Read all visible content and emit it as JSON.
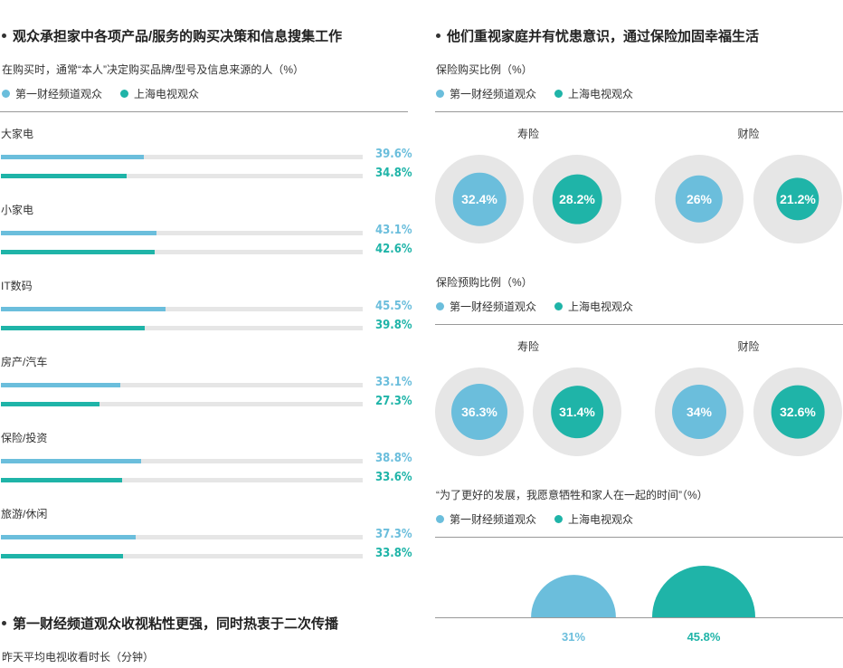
{
  "colors": {
    "series1": "#6bbedc",
    "series2": "#1fb4a8",
    "track": "#e6e6e6"
  },
  "left": {
    "section1_title": "观众承担家中各项产品/服务的购买决策和信息搜集工作",
    "section1_subtitle": "在购买时，通常“本人”决定购买品牌/型号及信息来源的人（%）",
    "legend": {
      "s1": "第一财经频道观众",
      "s2": "上海电视观众"
    },
    "section2_title": "第一财经频道观众收视粘性更强，同时热衷于二次传播",
    "section2_subtitle": "昨天平均电视收看时长（分钟）"
  },
  "right": {
    "title": "他们重视家庭并有忧患意识，通过保险加固幸福生活",
    "ring1_subtitle": "保险购买比例（%）",
    "ring2_subtitle": "保险预购比例（%）",
    "semi_subtitle": "“为了更好的发展，我愿意牺牲和家人在一起的时间”（%）",
    "legend": {
      "s1": "第一财经频道观众",
      "s2": "上海电视观众"
    }
  },
  "chart_data": [
    {
      "type": "bar",
      "orientation": "horizontal",
      "categories": [
        "大家电",
        "小家电",
        "IT数码",
        "房产/汽车",
        "保险/投资",
        "旅游/休闲"
      ],
      "series": [
        {
          "name": "第一财经频道观众",
          "values": [
            39.6,
            43.1,
            45.5,
            33.1,
            38.8,
            37.3
          ],
          "labels": [
            "39.6%",
            "43.1%",
            "45.5%",
            "33.1%",
            "38.8%",
            "37.3%"
          ]
        },
        {
          "name": "上海电视观众",
          "values": [
            34.8,
            42.6,
            39.8,
            27.3,
            33.6,
            33.8
          ],
          "labels": [
            "34.8%",
            "42.6%",
            "39.8%",
            "27.3%",
            "33.6%",
            "33.8%"
          ]
        }
      ],
      "xlim": [
        0,
        100
      ]
    },
    {
      "type": "pie",
      "subtitle": "保险购买比例（%）",
      "groups": [
        {
          "label": "寿险",
          "values": [
            32.4,
            28.2
          ],
          "labels": [
            "32.4%",
            "28.2%"
          ]
        },
        {
          "label": "财险",
          "values": [
            26,
            21.2
          ],
          "labels": [
            "26%",
            "21.2%"
          ]
        }
      ]
    },
    {
      "type": "pie",
      "subtitle": "保险预购比例（%）",
      "groups": [
        {
          "label": "寿险",
          "values": [
            36.3,
            31.4
          ],
          "labels": [
            "36.3%",
            "31.4%"
          ]
        },
        {
          "label": "财险",
          "values": [
            34,
            32.6
          ],
          "labels": [
            "34%",
            "32.6%"
          ]
        }
      ]
    },
    {
      "type": "area",
      "subtitle": "“为了更好的发展，我愿意牺牲和家人在一起的时间”（%）",
      "series": [
        {
          "name": "第一财经频道观众",
          "value": 31,
          "label": "31%"
        },
        {
          "name": "上海电视观众",
          "value": 45.8,
          "label": "45.8%"
        }
      ]
    }
  ]
}
